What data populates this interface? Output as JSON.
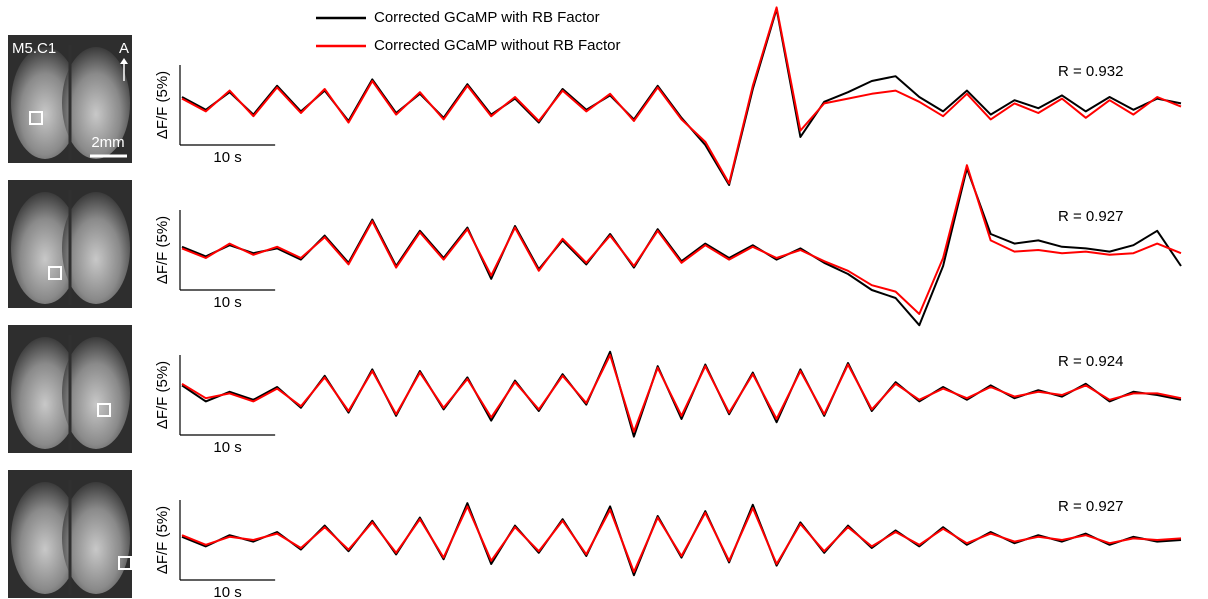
{
  "chart_data": [
    {
      "type": "line",
      "panel_label": "M5.C1",
      "orientation_label": "A",
      "image_scale_label": "2mm",
      "annotation": "R = 0.932",
      "scale_x": {
        "value": 10,
        "label": "10 s"
      },
      "scale_y": {
        "value": 5,
        "label": "ΔF/F (5%)"
      },
      "xlim": [
        0,
        107
      ],
      "ylim": [
        -6,
        6
      ],
      "x": [
        0,
        2.5,
        5,
        7.5,
        10,
        12.5,
        15,
        17.5,
        20,
        22.5,
        25,
        27.5,
        30,
        32.5,
        35,
        37.5,
        40,
        42.5,
        45,
        47.5,
        50,
        52.5,
        55,
        57.5,
        60,
        62.5,
        65,
        67.5,
        70,
        72.5,
        75,
        77.5,
        80,
        82.5,
        85,
        87.5,
        90,
        92.5,
        95,
        97.5,
        100,
        102.5,
        105
      ],
      "series": [
        {
          "name": "Corrected GCaMP with RB Factor",
          "color": "#000000",
          "values": [
            0.5,
            -0.3,
            0.8,
            -0.6,
            1.2,
            -0.4,
            0.9,
            -1.0,
            1.6,
            -0.5,
            0.7,
            -0.8,
            1.3,
            -0.6,
            0.4,
            -1.1,
            1.0,
            -0.3,
            0.6,
            -0.9,
            1.2,
            -0.8,
            -2.5,
            -5.0,
            1.0,
            6.0,
            -2.0,
            0.2,
            0.8,
            1.5,
            1.8,
            0.5,
            -0.4,
            0.9,
            -0.6,
            0.3,
            -0.2,
            0.6,
            -0.4,
            0.5,
            -0.3,
            0.4,
            0.1
          ]
        },
        {
          "name": "Corrected GCaMP without RB Factor",
          "color": "#ff0000",
          "values": [
            0.4,
            -0.4,
            0.9,
            -0.7,
            1.1,
            -0.5,
            1.0,
            -1.1,
            1.5,
            -0.6,
            0.8,
            -0.9,
            1.2,
            -0.7,
            0.5,
            -1.0,
            0.9,
            -0.4,
            0.7,
            -1.0,
            1.1,
            -0.9,
            -2.3,
            -4.9,
            1.2,
            6.1,
            -1.6,
            0.1,
            0.4,
            0.7,
            0.9,
            0.2,
            -0.7,
            0.7,
            -0.9,
            0.1,
            -0.5,
            0.4,
            -0.8,
            0.3,
            -0.6,
            0.5,
            -0.1
          ]
        }
      ]
    },
    {
      "type": "line",
      "annotation": "R = 0.927",
      "scale_x": {
        "value": 10,
        "label": "10 s"
      },
      "scale_y": {
        "value": 5,
        "label": "ΔF/F (5%)"
      },
      "xlim": [
        0,
        107
      ],
      "ylim": [
        -6,
        6
      ],
      "x": [
        0,
        2.5,
        5,
        7.5,
        10,
        12.5,
        15,
        17.5,
        20,
        22.5,
        25,
        27.5,
        30,
        32.5,
        35,
        37.5,
        40,
        42.5,
        45,
        47.5,
        50,
        52.5,
        55,
        57.5,
        60,
        62.5,
        65,
        67.5,
        70,
        72.5,
        75,
        77.5,
        80,
        82.5,
        85,
        87.5,
        90,
        92.5,
        95,
        97.5,
        100,
        102.5,
        105
      ],
      "series": [
        {
          "color": "#000000",
          "values": [
            0.2,
            -0.4,
            0.3,
            -0.2,
            0.1,
            -0.6,
            0.9,
            -0.8,
            1.9,
            -1.0,
            1.2,
            -0.5,
            1.4,
            -1.8,
            1.5,
            -1.2,
            0.6,
            -0.9,
            1.0,
            -1.1,
            1.3,
            -0.7,
            0.4,
            -0.5,
            0.3,
            -0.6,
            0.1,
            -0.8,
            -1.5,
            -2.5,
            -3.0,
            -4.7,
            -1.0,
            5.1,
            1.0,
            0.4,
            0.6,
            0.2,
            0.1,
            -0.1,
            0.3,
            1.2,
            -1.0
          ]
        },
        {
          "color": "#ff0000",
          "values": [
            0.1,
            -0.5,
            0.4,
            -0.3,
            0.2,
            -0.5,
            0.8,
            -0.9,
            1.8,
            -1.1,
            1.1,
            -0.6,
            1.3,
            -1.6,
            1.4,
            -1.3,
            0.7,
            -0.8,
            0.9,
            -1.0,
            1.2,
            -0.8,
            0.3,
            -0.6,
            0.2,
            -0.5,
            0.0,
            -0.7,
            -1.3,
            -2.2,
            -2.6,
            -4.0,
            -0.5,
            5.3,
            0.6,
            -0.1,
            0.0,
            -0.2,
            -0.1,
            -0.3,
            -0.2,
            0.4,
            -0.2
          ]
        }
      ]
    },
    {
      "type": "line",
      "annotation": "R = 0.924",
      "scale_x": {
        "value": 10,
        "label": "10 s"
      },
      "scale_y": {
        "value": 5,
        "label": "ΔF/F (5%)"
      },
      "xlim": [
        0,
        107
      ],
      "ylim": [
        -6,
        6
      ],
      "x": [
        0,
        2.5,
        5,
        7.5,
        10,
        12.5,
        15,
        17.5,
        20,
        22.5,
        25,
        27.5,
        30,
        32.5,
        35,
        37.5,
        40,
        42.5,
        45,
        47.5,
        50,
        52.5,
        55,
        57.5,
        60,
        62.5,
        65,
        67.5,
        70,
        72.5,
        75,
        77.5,
        80,
        82.5,
        85,
        87.5,
        90,
        92.5,
        95,
        97.5,
        100,
        102.5,
        105
      ],
      "series": [
        {
          "color": "#000000",
          "values": [
            0.6,
            -0.4,
            0.2,
            -0.3,
            0.5,
            -0.8,
            1.2,
            -1.1,
            1.6,
            -1.3,
            1.5,
            -0.9,
            1.1,
            -1.6,
            0.9,
            -1.0,
            1.3,
            -0.6,
            2.7,
            -2.6,
            1.8,
            -1.5,
            1.9,
            -1.2,
            1.4,
            -1.7,
            1.6,
            -1.3,
            2.0,
            -1.0,
            0.8,
            -0.4,
            0.5,
            -0.3,
            0.6,
            -0.2,
            0.3,
            -0.1,
            0.7,
            -0.4,
            0.2,
            0.0,
            -0.3
          ]
        },
        {
          "color": "#ff0000",
          "values": [
            0.7,
            -0.2,
            0.1,
            -0.4,
            0.4,
            -0.7,
            1.1,
            -1.0,
            1.5,
            -1.2,
            1.4,
            -0.8,
            1.0,
            -1.4,
            0.8,
            -0.9,
            1.2,
            -0.5,
            2.5,
            -2.3,
            1.7,
            -1.3,
            1.8,
            -1.1,
            1.3,
            -1.5,
            1.5,
            -1.2,
            1.9,
            -0.9,
            0.7,
            -0.3,
            0.4,
            -0.2,
            0.5,
            -0.1,
            0.2,
            0.0,
            0.6,
            -0.3,
            0.1,
            0.1,
            -0.2
          ]
        }
      ]
    },
    {
      "type": "line",
      "annotation": "R = 0.927",
      "scale_x": {
        "value": 10,
        "label": "10 s"
      },
      "scale_y": {
        "value": 5,
        "label": "ΔF/F (5%)"
      },
      "xlim": [
        0,
        107
      ],
      "ylim": [
        -6,
        6
      ],
      "x": [
        0,
        2.5,
        5,
        7.5,
        10,
        12.5,
        15,
        17.5,
        20,
        22.5,
        25,
        27.5,
        30,
        32.5,
        35,
        37.5,
        40,
        42.5,
        45,
        47.5,
        50,
        52.5,
        55,
        57.5,
        60,
        62.5,
        65,
        67.5,
        70,
        72.5,
        75,
        77.5,
        80,
        82.5,
        85,
        87.5,
        90,
        92.5,
        95,
        97.5,
        100,
        102.5,
        105
      ],
      "series": [
        {
          "color": "#000000",
          "values": [
            0.2,
            -0.4,
            0.3,
            -0.1,
            0.5,
            -0.6,
            0.9,
            -0.7,
            1.2,
            -0.9,
            1.4,
            -1.2,
            2.3,
            -1.5,
            0.9,
            -0.8,
            1.3,
            -1.0,
            2.1,
            -2.2,
            1.5,
            -1.1,
            1.8,
            -1.4,
            2.2,
            -1.6,
            1.1,
            -0.8,
            0.9,
            -0.5,
            0.6,
            -0.4,
            0.8,
            -0.3,
            0.5,
            -0.2,
            0.3,
            -0.1,
            0.4,
            -0.3,
            0.2,
            -0.1,
            0.0
          ]
        },
        {
          "color": "#ff0000",
          "values": [
            0.3,
            -0.3,
            0.2,
            0.0,
            0.4,
            -0.5,
            0.8,
            -0.6,
            1.1,
            -0.8,
            1.3,
            -1.1,
            2.1,
            -1.3,
            0.8,
            -0.7,
            1.2,
            -0.9,
            1.9,
            -2.0,
            1.4,
            -1.0,
            1.7,
            -1.3,
            2.0,
            -1.5,
            1.0,
            -0.7,
            0.8,
            -0.4,
            0.5,
            -0.3,
            0.7,
            -0.2,
            0.4,
            -0.1,
            0.2,
            0.0,
            0.3,
            -0.2,
            0.1,
            0.0,
            0.1
          ]
        }
      ]
    }
  ]
}
